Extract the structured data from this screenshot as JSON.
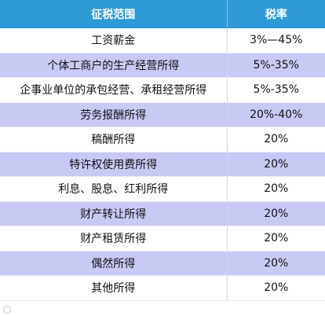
{
  "table": {
    "headers": [
      "征税范围",
      "税率"
    ],
    "rows": [
      {
        "scope": "工资薪金",
        "rate": "3%—45%"
      },
      {
        "scope": "个体工商户的生产经营所得",
        "rate": "5%-35%"
      },
      {
        "scope": "企事业单位的承包经营、承租经营所得",
        "rate": "5%-35%"
      },
      {
        "scope": "劳务报酬所得",
        "rate": "20%-40%"
      },
      {
        "scope": "稿酬所得",
        "rate": "20%"
      },
      {
        "scope": "特许权使用费所得",
        "rate": "20%"
      },
      {
        "scope": "利息、股息、红利所得",
        "rate": "20%"
      },
      {
        "scope": "财产转让所得",
        "rate": "20%"
      },
      {
        "scope": "财产租赁所得",
        "rate": "20%"
      },
      {
        "scope": "偶然所得",
        "rate": "20%"
      },
      {
        "scope": "其他所得",
        "rate": "20%"
      }
    ]
  },
  "colors": {
    "header_bg": "#2e9bd6",
    "row_alt_bg": "#c9c9f5",
    "row_bg": "#ffffff"
  },
  "watermark": {
    "text": "",
    "icon": "watermark-logo-icon"
  }
}
